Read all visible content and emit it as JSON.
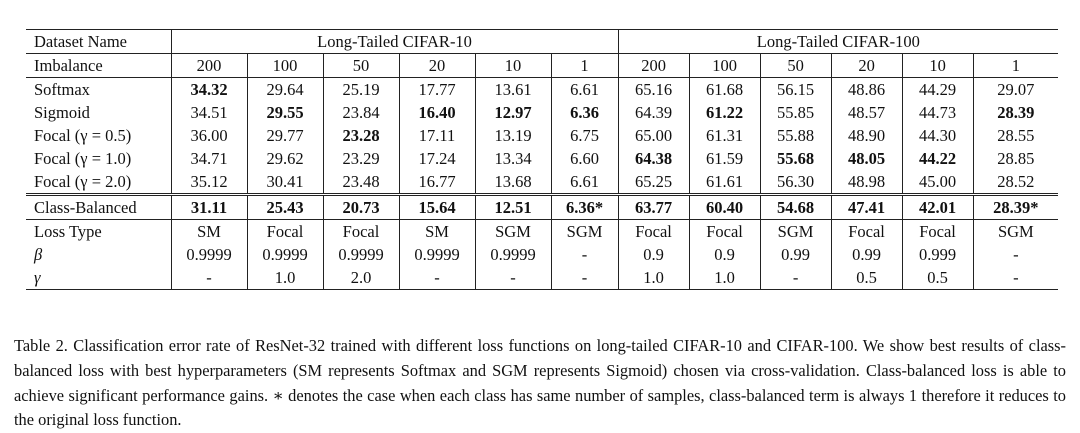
{
  "table": {
    "header": {
      "dataset_label": "Dataset Name",
      "group_cifar10": "Long-Tailed CIFAR-10",
      "group_cifar100": "Long-Tailed CIFAR-100",
      "imbalance_label": "Imbalance",
      "imbalance_cifar10": [
        "200",
        "100",
        "50",
        "20",
        "10",
        "1"
      ],
      "imbalance_cifar100": [
        "200",
        "100",
        "50",
        "20",
        "10",
        "1"
      ]
    },
    "rows": [
      {
        "label": "Softmax",
        "values": [
          "34.32",
          "29.64",
          "25.19",
          "17.77",
          "13.61",
          "6.61",
          "65.16",
          "61.68",
          "56.15",
          "48.86",
          "44.29",
          "29.07"
        ]
      },
      {
        "label": "Sigmoid",
        "values": [
          "34.51",
          "29.55",
          "23.84",
          "16.40",
          "12.97",
          "6.36",
          "64.39",
          "61.22",
          "55.85",
          "48.57",
          "44.73",
          "28.39"
        ]
      },
      {
        "label": "Focal (γ = 0.5)",
        "values": [
          "36.00",
          "29.77",
          "23.28",
          "17.11",
          "13.19",
          "6.75",
          "65.00",
          "61.31",
          "55.88",
          "48.90",
          "44.30",
          "28.55"
        ]
      },
      {
        "label": "Focal (γ = 1.0)",
        "values": [
          "34.71",
          "29.62",
          "23.29",
          "17.24",
          "13.34",
          "6.60",
          "64.38",
          "61.59",
          "55.68",
          "48.05",
          "44.22",
          "28.85"
        ]
      },
      {
        "label": "Focal (γ = 2.0)",
        "values": [
          "35.12",
          "30.41",
          "23.48",
          "16.77",
          "13.68",
          "6.61",
          "65.25",
          "61.61",
          "56.30",
          "48.98",
          "45.00",
          "28.52"
        ]
      }
    ],
    "class_balanced": {
      "label": "Class-Balanced",
      "values": [
        "31.11",
        "25.43",
        "20.73",
        "15.64",
        "12.51",
        "6.36*",
        "63.77",
        "60.40",
        "54.68",
        "47.41",
        "42.01",
        "28.39*"
      ]
    },
    "loss_type": {
      "label": "Loss Type",
      "values": [
        "SM",
        "Focal",
        "Focal",
        "SM",
        "SGM",
        "SGM",
        "Focal",
        "Focal",
        "SGM",
        "Focal",
        "Focal",
        "SGM"
      ]
    },
    "beta": {
      "label": "β",
      "values": [
        "0.9999",
        "0.9999",
        "0.9999",
        "0.9999",
        "0.9999",
        "-",
        "0.9",
        "0.9",
        "0.99",
        "0.99",
        "0.999",
        "-"
      ]
    },
    "gamma": {
      "label": "γ",
      "values": [
        "-",
        "1.0",
        "2.0",
        "-",
        "-",
        "-",
        "1.0",
        "1.0",
        "-",
        "0.5",
        "0.5",
        "-"
      ]
    }
  },
  "caption": "Table 2. Classification error rate of ResNet-32 trained with different loss functions on long-tailed CIFAR-10 and CIFAR-100. We show best results of class-balanced loss with best hyperparameters (SM represents Softmax and SGM represents Sigmoid) chosen via cross-validation. Class-balanced loss is able to achieve significant performance gains. ∗ denotes the case when each class has same number of samples, class-balanced term is always 1 therefore it reduces to the original loss function."
}
